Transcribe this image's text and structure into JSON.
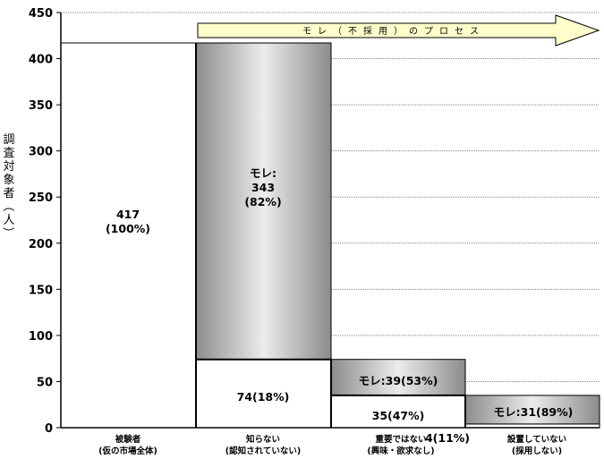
{
  "chart_data": {
    "type": "bar",
    "title": "",
    "ylabel": "調査対象者（人）",
    "ylim": [
      0,
      450
    ],
    "y_ticks": [
      0,
      50,
      100,
      150,
      200,
      250,
      300,
      350,
      400,
      450
    ],
    "grid": true,
    "process_arrow_label": "モレ（不採用）のプロセス",
    "categories": [
      [
        "被験者",
        "(仮の市場全体)"
      ],
      [
        "知らない",
        "(認知されていない)"
      ],
      [
        "重要ではない",
        "(興味・欲求なし)"
      ],
      [
        "設置していない",
        "(採用しない)"
      ]
    ],
    "bars": [
      {
        "segments": [
          {
            "role": "base",
            "from": 0,
            "to": 417,
            "label": [
              "417",
              "(100%)"
            ]
          }
        ]
      },
      {
        "segments": [
          {
            "role": "remaining",
            "from": 0,
            "to": 74,
            "label": [
              "74(18%)"
            ]
          },
          {
            "role": "leak",
            "from": 74,
            "to": 417,
            "label": [
              "モレ:",
              "343",
              "(82%)"
            ]
          }
        ]
      },
      {
        "segments": [
          {
            "role": "remaining",
            "from": 0,
            "to": 35,
            "label": [
              "35(47%)"
            ]
          },
          {
            "role": "leak",
            "from": 35,
            "to": 74,
            "label": [
              "モレ:39(53%)"
            ]
          }
        ]
      },
      {
        "segments": [
          {
            "role": "remaining",
            "from": 0,
            "to": 4,
            "label": [
              "4(11%)"
            ]
          },
          {
            "role": "leak",
            "from": 4,
            "to": 35,
            "label": [
              "モレ:31(89%)"
            ]
          }
        ]
      }
    ],
    "colors": {
      "leak_dark": "#8c8c8c",
      "leak_light": "#ececec",
      "arrow_fill": "#ffffcc",
      "grid": "#808080"
    }
  }
}
